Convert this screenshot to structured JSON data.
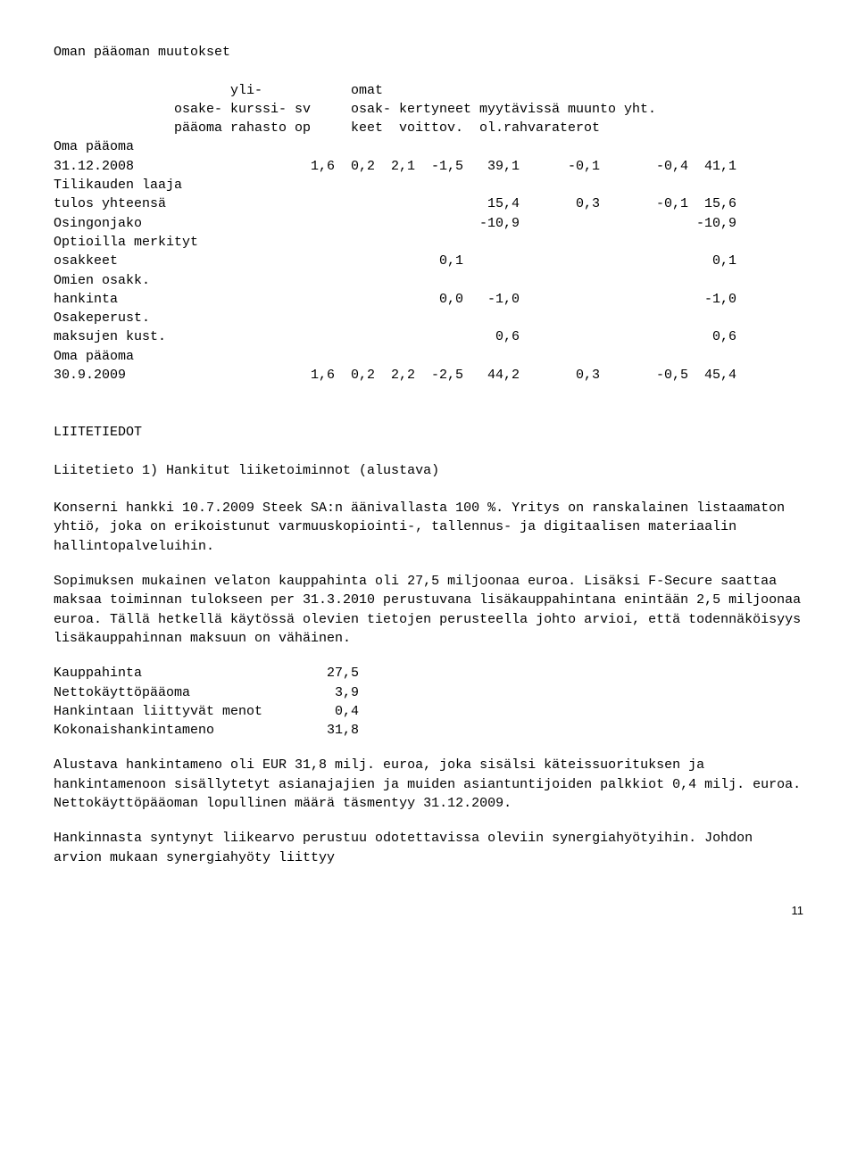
{
  "title": "Oman pääoman muutokset",
  "header": {
    "row1": [
      "",
      "yli-",
      "",
      "",
      "omat",
      "",
      "",
      "",
      ""
    ],
    "row2": [
      "osake-",
      "kurssi-",
      "sv",
      "",
      "osak-",
      "kertyneet",
      "myytävissä",
      "muunto",
      "yht."
    ],
    "row3": [
      "pääoma",
      "rahasto",
      "op",
      "",
      "keet",
      "voittov.",
      "ol.rahvarat",
      "erot",
      ""
    ]
  },
  "rows": [
    {
      "label": "Oma pääoma"
    },
    {
      "label": "31.12.2008",
      "v": [
        "1,6",
        "0,2",
        "2,1",
        "-1,5",
        "39,1",
        "-0,1",
        "-0,4",
        "41,1"
      ]
    },
    {
      "label": "Tilikauden laaja"
    },
    {
      "label": "tulos yhteensä",
      "v": [
        "",
        "",
        "",
        "",
        "15,4",
        "0,3",
        "-0,1",
        "15,6"
      ]
    },
    {
      "label": "Osingonjako",
      "v": [
        "",
        "",
        "",
        "",
        "-10,9",
        "",
        "",
        "-10,9"
      ]
    },
    {
      "label": "Optioilla merkityt"
    },
    {
      "label": "osakkeet",
      "v": [
        "",
        "",
        "",
        "0,1",
        "",
        "",
        "",
        "0,1"
      ]
    },
    {
      "label": "Omien osakk."
    },
    {
      "label": "hankinta",
      "v": [
        "",
        "",
        "",
        "0,0",
        "-1,0",
        "",
        "",
        "-1,0"
      ]
    },
    {
      "label": "Osakeperust."
    },
    {
      "label": "maksujen kust.",
      "v": [
        "",
        "",
        "",
        "",
        "0,6",
        "",
        "",
        "0,6"
      ]
    },
    {
      "label": "Oma pääoma"
    },
    {
      "label": "30.9.2009",
      "v": [
        "1,6",
        "0,2",
        "2,2",
        "-2,5",
        "44,2",
        "0,3",
        "-0,5",
        "45,4"
      ]
    }
  ],
  "liite_heading": "LIITETIEDOT",
  "liite_subheading": "Liitetieto 1) Hankitut liiketoiminnot (alustava)",
  "para1": "Konserni hankki 10.7.2009 Steek SA:n äänivallasta 100 %. Yritys on ranskalainen listaamaton yhtiö, joka on erikoistunut varmuuskopiointi-, tallennus- ja digitaalisen materiaalin hallintopalveluihin.",
  "para2": "Sopimuksen mukainen velaton kauppahinta oli 27,5 miljoonaa euroa. Lisäksi F-Secure saattaa maksaa toiminnan tulokseen per 31.3.2010 perustuvana lisäkauppahintana enintään 2,5 miljoonaa euroa. Tällä hetkellä käytössä olevien tietojen perusteella johto arvioi, että todennäköisyys lisäkauppahinnan maksuun on vähäinen.",
  "smalltable": [
    {
      "label": "Kauppahinta",
      "val": "27,5"
    },
    {
      "label": "Nettokäyttöpääoma",
      "val": "3,9"
    },
    {
      "label": "Hankintaan liittyvät menot",
      "val": "0,4"
    },
    {
      "label": "Kokonaishankintameno",
      "val": "31,8"
    }
  ],
  "para3": "Alustava hankintameno oli EUR 31,8 milj. euroa, joka sisälsi käteissuorituksen ja hankintamenoon sisällytetyt asianajajien ja muiden asiantuntijoiden palkkiot 0,4 milj. euroa. Nettokäyttöpääoman lopullinen määrä täsmentyy 31.12.2009.",
  "para4": "Hankinnasta syntynyt liikearvo perustuu odotettavissa oleviin synergiahyötyihin. Johdon arvion mukaan synergiahyöty liittyy",
  "page_number": "11",
  "colors": {
    "text": "#000000",
    "background": "#ffffff"
  },
  "font": {
    "family": "Courier New",
    "size_pt": 11
  }
}
